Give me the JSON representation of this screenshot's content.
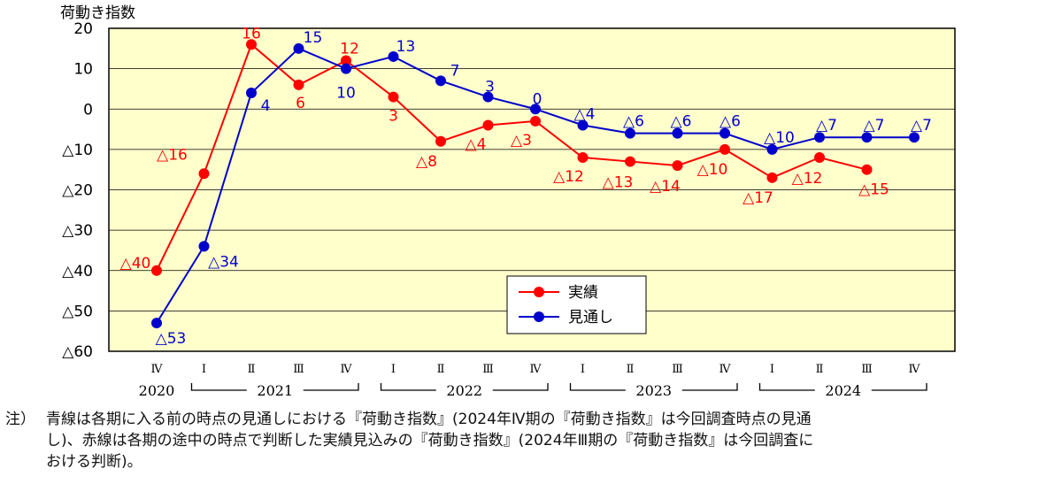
{
  "chart_data": {
    "type": "line",
    "ylabel": "荷動き指数",
    "ylim": [
      -60,
      20
    ],
    "yticks": [
      20,
      10,
      0,
      -10,
      -20,
      -30,
      -40,
      -50,
      -60
    ],
    "ytick_labels": [
      "20",
      "10",
      "0",
      "△10",
      "△20",
      "△30",
      "△40",
      "△50",
      "△60"
    ],
    "quarters": [
      "Ⅳ",
      "Ⅰ",
      "Ⅱ",
      "Ⅲ",
      "Ⅳ",
      "Ⅰ",
      "Ⅱ",
      "Ⅲ",
      "Ⅳ",
      "Ⅰ",
      "Ⅱ",
      "Ⅲ",
      "Ⅳ",
      "Ⅰ",
      "Ⅱ",
      "Ⅲ",
      "Ⅳ"
    ],
    "years": [
      {
        "label": "2020",
        "start": 0,
        "end": 0
      },
      {
        "label": "2021",
        "start": 1,
        "end": 4
      },
      {
        "label": "2022",
        "start": 5,
        "end": 8
      },
      {
        "label": "2023",
        "start": 9,
        "end": 12
      },
      {
        "label": "2024",
        "start": 13,
        "end": 16
      }
    ],
    "grid": true,
    "legend_position": "bottom-center",
    "series": [
      {
        "name": "実績",
        "color": "#ff0000",
        "values": [
          -40,
          -16,
          16,
          6,
          12,
          3,
          -8,
          -4,
          -3,
          -12,
          -13,
          -14,
          -10,
          -17,
          -12,
          -15,
          null
        ],
        "labels": [
          "△40",
          "△16",
          "16",
          "6",
          "12",
          "3",
          "△8",
          "△4",
          "△3",
          "△12",
          "△13",
          "△14",
          "△10",
          "△17",
          "△12",
          "△15",
          null
        ]
      },
      {
        "name": "見通し",
        "color": "#0000cc",
        "values": [
          -53,
          -34,
          4,
          15,
          10,
          13,
          7,
          3,
          0,
          -4,
          -6,
          -6,
          -6,
          -10,
          -7,
          -7,
          -7
        ],
        "labels": [
          "△53",
          "△34",
          "4",
          "15",
          "10",
          "13",
          "7",
          "3",
          "0",
          "△4",
          "△6",
          "△6",
          "△6",
          "△10",
          "△7",
          "△7",
          "△7"
        ]
      }
    ]
  },
  "note": {
    "mark": "注）",
    "lines": [
      "青線は各期に入る前の時点の見通しにおける『荷動き指数』(2024年Ⅳ期の『荷動き指数』は今回調査時点の見通",
      "し)、赤線は各期の途中の時点で判断した実績見込みの『荷動き指数』(2024年Ⅲ期の『荷動き指数』は今回調査に",
      "おける判断)。"
    ]
  }
}
